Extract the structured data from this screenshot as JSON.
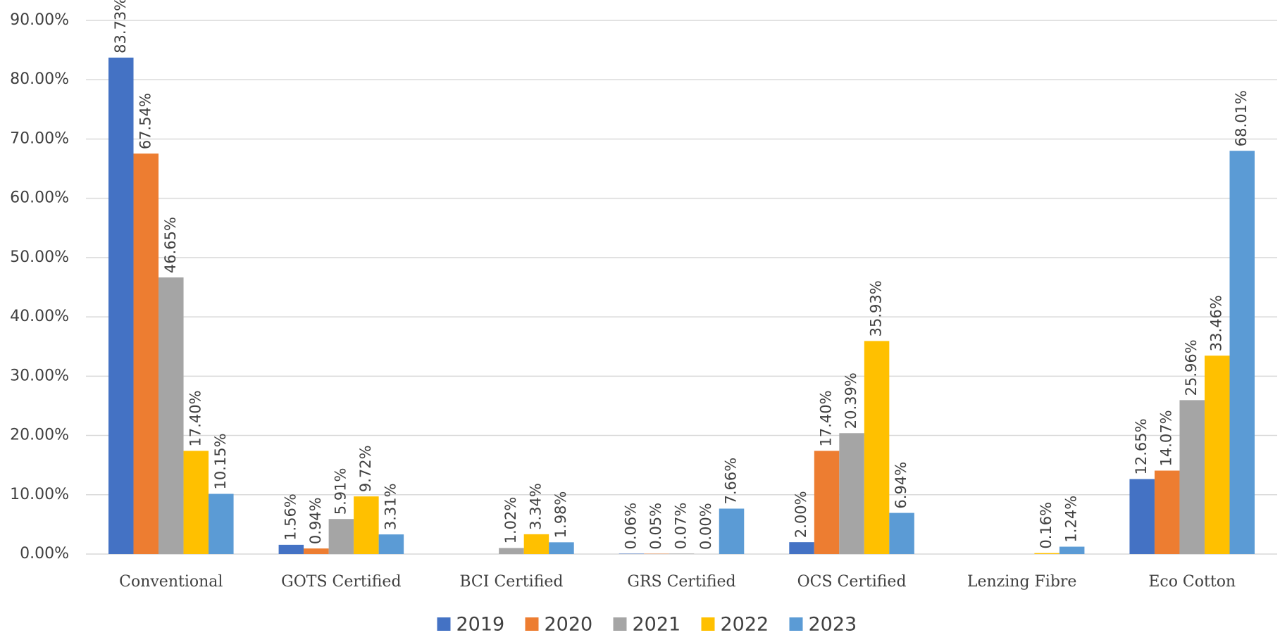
{
  "chart_data": {
    "type": "bar",
    "categories": [
      "Conventional",
      "GOTS Certified",
      "BCI Certified",
      "GRS Certified",
      "OCS Certified",
      "Lenzing Fibre",
      "Eco Cotton"
    ],
    "series": [
      {
        "name": "2019",
        "color": "#4472c4",
        "values": [
          83.73,
          1.56,
          null,
          0.06,
          2.0,
          null,
          12.65
        ],
        "value_labels": [
          "83.73%",
          "1.56%",
          null,
          "0.06%",
          "2.00%",
          null,
          "12.65%"
        ]
      },
      {
        "name": "2020",
        "color": "#ed7d31",
        "values": [
          67.54,
          0.94,
          null,
          0.05,
          17.4,
          null,
          14.07
        ],
        "value_labels": [
          "67.54%",
          "0.94%",
          null,
          "0.05%",
          "17.40%",
          null,
          "14.07%"
        ]
      },
      {
        "name": "2021",
        "color": "#a5a5a5",
        "values": [
          46.65,
          5.91,
          1.02,
          0.07,
          20.39,
          null,
          25.96
        ],
        "value_labels": [
          "46.65%",
          "5.91%",
          "1.02%",
          "0.07%",
          "20.39%",
          null,
          "25.96%"
        ]
      },
      {
        "name": "2022",
        "color": "#ffc000",
        "values": [
          17.4,
          9.72,
          3.34,
          0.0,
          35.93,
          0.16,
          33.46
        ],
        "value_labels": [
          "17.40%",
          "9.72%",
          "3.34%",
          "0.00%",
          "35.93%",
          "0.16%",
          "33.46%"
        ]
      },
      {
        "name": "2023",
        "color": "#5b9bd5",
        "values": [
          10.15,
          3.31,
          1.98,
          7.66,
          6.94,
          1.24,
          68.01
        ],
        "value_labels": [
          "10.15%",
          "3.31%",
          "1.98%",
          "7.66%",
          "6.94%",
          "1.24%",
          "68.01%"
        ]
      }
    ],
    "ylim": [
      0,
      90
    ],
    "yticks": [
      {
        "value": 0,
        "label": "0.00%"
      },
      {
        "value": 10,
        "label": "10.00%"
      },
      {
        "value": 20,
        "label": "20.00%"
      },
      {
        "value": 30,
        "label": "30.00%"
      },
      {
        "value": 40,
        "label": "40.00%"
      },
      {
        "value": 50,
        "label": "50.00%"
      },
      {
        "value": 60,
        "label": "60.00%"
      },
      {
        "value": 70,
        "label": "70.00%"
      },
      {
        "value": 80,
        "label": "80.00%"
      },
      {
        "value": 90,
        "label": "90.00%"
      }
    ],
    "grid": true,
    "legend": "bottom"
  }
}
